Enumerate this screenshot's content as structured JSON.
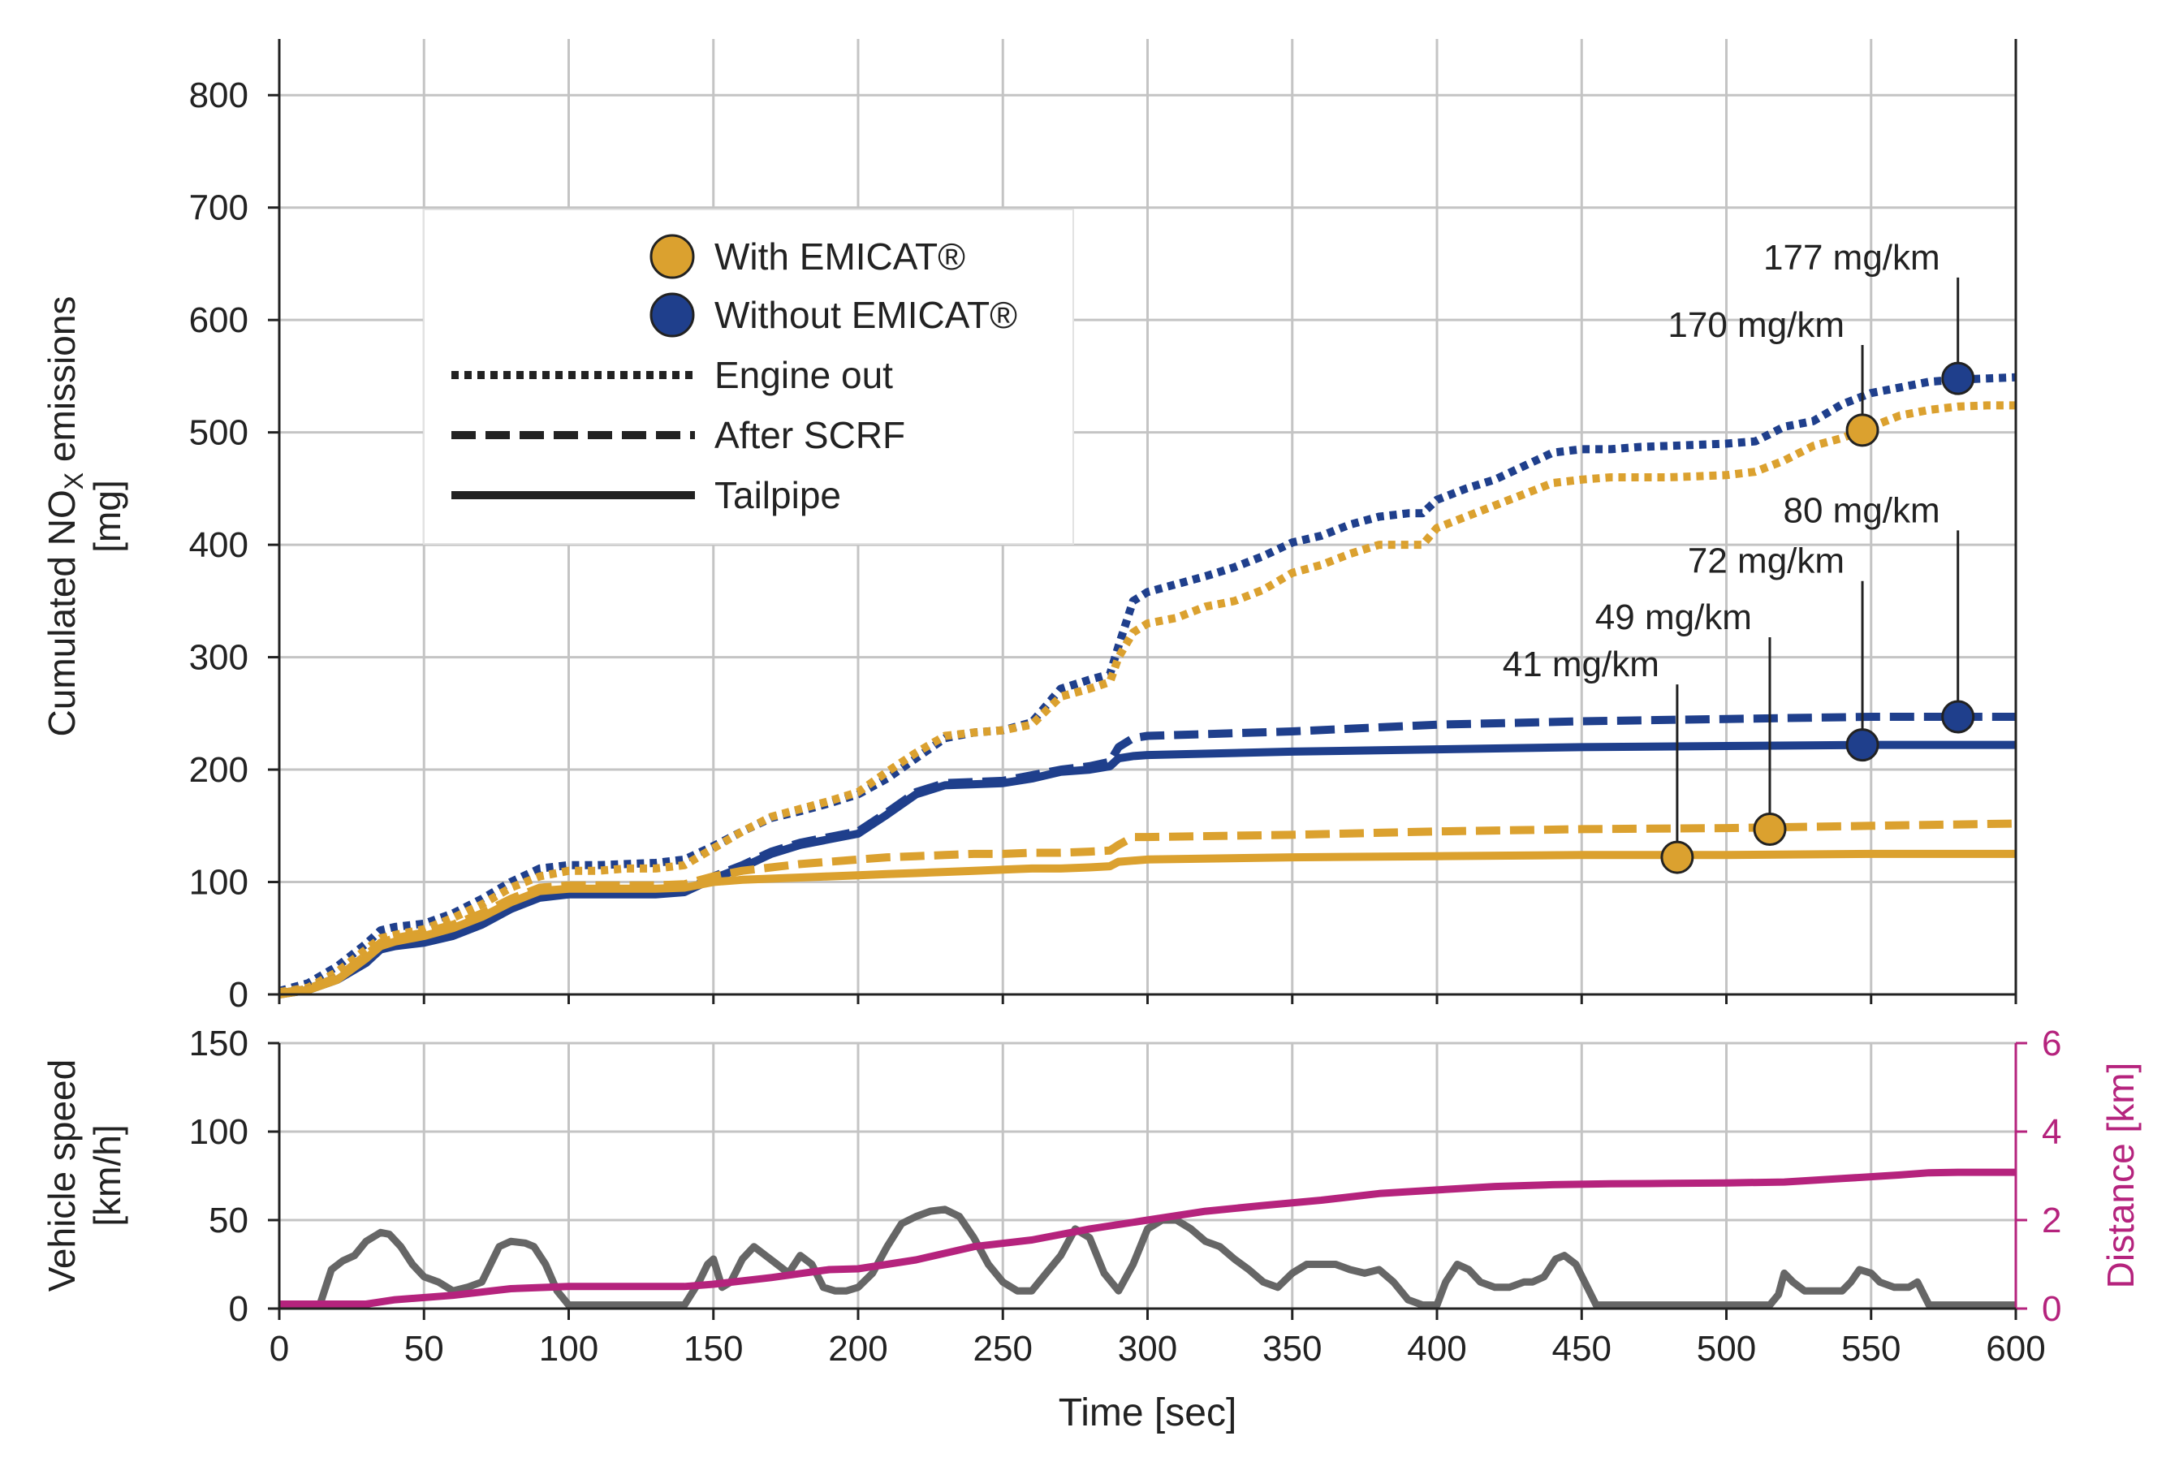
{
  "colors": {
    "with": "#DBA12F",
    "without": "#1F3F8C",
    "speed": "#666666",
    "distance": "#B5237D",
    "grid": "#c4c4c4",
    "text": "#222222"
  },
  "chart_data": [
    {
      "type": "line",
      "ylabel": "Cumulated NO",
      "ylabel_sub": "X",
      "ylabel_tail": " emissions",
      "ylabel_unit": "[mg]",
      "xlim": [
        0,
        600
      ],
      "ylim": [
        0,
        850
      ],
      "xticks": [
        0,
        50,
        100,
        150,
        200,
        250,
        300,
        350,
        400,
        450,
        500,
        550,
        600
      ],
      "yticks": [
        0,
        100,
        200,
        300,
        400,
        500,
        600,
        700,
        800
      ],
      "grid": true,
      "legend": {
        "placement": "upper-left",
        "entries": [
          {
            "label": "With EMICAT®",
            "marker": "circle",
            "color": "#DBA12F"
          },
          {
            "label": "Without EMICAT®",
            "marker": "circle",
            "color": "#1F3F8C"
          },
          {
            "label": "Engine out",
            "style": "dotted"
          },
          {
            "label": "After SCRF",
            "style": "dashed"
          },
          {
            "label": "Tailpipe",
            "style": "solid"
          }
        ]
      },
      "series": [
        {
          "variant": "without",
          "stage": "engine_out",
          "style": "dotted",
          "x": [
            0,
            10,
            20,
            30,
            35,
            40,
            50,
            60,
            70,
            80,
            90,
            100,
            110,
            120,
            130,
            140,
            150,
            160,
            170,
            180,
            190,
            200,
            210,
            220,
            230,
            240,
            250,
            260,
            270,
            280,
            287,
            290,
            295,
            300,
            310,
            320,
            330,
            340,
            350,
            360,
            370,
            380,
            390,
            395,
            400,
            410,
            420,
            430,
            440,
            450,
            460,
            470,
            480,
            490,
            500,
            510,
            520,
            530,
            540,
            550,
            560,
            570,
            580,
            590,
            600
          ],
          "y": [
            3,
            10,
            25,
            45,
            57,
            60,
            63,
            72,
            85,
            100,
            112,
            115,
            115,
            116,
            117,
            120,
            132,
            145,
            157,
            163,
            170,
            178,
            192,
            210,
            228,
            233,
            235,
            242,
            272,
            280,
            285,
            310,
            350,
            358,
            365,
            372,
            380,
            390,
            402,
            408,
            418,
            425,
            428,
            428,
            440,
            450,
            458,
            470,
            482,
            485,
            485,
            487,
            488,
            489,
            490,
            492,
            505,
            510,
            525,
            535,
            540,
            545,
            547,
            548,
            549
          ]
        },
        {
          "variant": "with",
          "stage": "engine_out",
          "style": "dotted",
          "x": [
            0,
            10,
            20,
            30,
            35,
            40,
            50,
            60,
            70,
            80,
            90,
            100,
            110,
            120,
            130,
            140,
            150,
            160,
            170,
            180,
            190,
            200,
            210,
            220,
            230,
            240,
            250,
            260,
            270,
            280,
            287,
            290,
            295,
            300,
            310,
            320,
            330,
            340,
            350,
            360,
            370,
            380,
            390,
            395,
            400,
            410,
            420,
            430,
            440,
            450,
            460,
            470,
            480,
            490,
            500,
            510,
            520,
            530,
            540,
            550,
            560,
            570,
            580,
            590,
            600
          ],
          "y": [
            2,
            6,
            20,
            40,
            50,
            53,
            58,
            68,
            80,
            95,
            105,
            110,
            110,
            112,
            112,
            115,
            130,
            145,
            158,
            165,
            172,
            180,
            198,
            215,
            230,
            233,
            235,
            240,
            265,
            272,
            278,
            300,
            322,
            330,
            335,
            345,
            350,
            360,
            375,
            382,
            392,
            400,
            400,
            400,
            415,
            425,
            435,
            445,
            455,
            458,
            460,
            460,
            460,
            461,
            462,
            465,
            475,
            488,
            495,
            505,
            515,
            520,
            523,
            524,
            524
          ]
        },
        {
          "variant": "without",
          "stage": "after_scrf",
          "style": "dashed",
          "x": [
            0,
            10,
            20,
            30,
            35,
            40,
            50,
            60,
            70,
            80,
            90,
            100,
            110,
            120,
            130,
            140,
            150,
            160,
            170,
            180,
            190,
            200,
            210,
            220,
            230,
            240,
            250,
            260,
            270,
            280,
            287,
            290,
            295,
            300,
            350,
            400,
            450,
            500,
            550,
            600
          ],
          "y": [
            1,
            5,
            15,
            30,
            42,
            45,
            47,
            53,
            63,
            78,
            88,
            90,
            90,
            90,
            90,
            92,
            105,
            115,
            127,
            135,
            140,
            145,
            162,
            180,
            188,
            189,
            190,
            195,
            200,
            203,
            207,
            220,
            228,
            230,
            234,
            240,
            243,
            245,
            247,
            247
          ]
        },
        {
          "variant": "without",
          "stage": "tailpipe",
          "style": "solid",
          "x": [
            0,
            10,
            20,
            30,
            35,
            40,
            50,
            60,
            70,
            80,
            90,
            100,
            110,
            120,
            130,
            140,
            150,
            160,
            170,
            180,
            190,
            200,
            210,
            220,
            230,
            240,
            250,
            260,
            270,
            280,
            287,
            290,
            295,
            300,
            350,
            400,
            450,
            500,
            550,
            600
          ],
          "y": [
            0,
            4,
            13,
            28,
            40,
            43,
            46,
            52,
            62,
            76,
            86,
            89,
            89,
            89,
            89,
            91,
            103,
            113,
            125,
            133,
            138,
            143,
            160,
            178,
            186,
            187,
            188,
            192,
            198,
            200,
            203,
            210,
            212,
            213,
            216,
            218,
            220,
            221,
            222,
            222
          ]
        },
        {
          "variant": "with",
          "stage": "after_scrf",
          "style": "dashed",
          "x": [
            0,
            10,
            20,
            30,
            35,
            40,
            50,
            60,
            70,
            80,
            90,
            100,
            110,
            120,
            130,
            140,
            150,
            160,
            170,
            180,
            190,
            200,
            210,
            220,
            230,
            240,
            250,
            260,
            270,
            280,
            287,
            290,
            295,
            300,
            350,
            400,
            450,
            500,
            550,
            600
          ],
          "y": [
            1,
            5,
            15,
            35,
            46,
            50,
            55,
            62,
            72,
            85,
            95,
            97,
            97,
            97,
            97,
            98,
            105,
            110,
            113,
            116,
            118,
            120,
            122,
            123,
            124,
            125,
            125,
            126,
            126,
            127,
            128,
            133,
            140,
            140,
            142,
            145,
            147,
            148,
            150,
            152
          ]
        },
        {
          "variant": "with",
          "stage": "tailpipe",
          "style": "solid",
          "x": [
            0,
            10,
            20,
            30,
            35,
            40,
            50,
            60,
            70,
            80,
            90,
            100,
            110,
            120,
            130,
            140,
            150,
            160,
            170,
            180,
            190,
            200,
            210,
            220,
            230,
            240,
            250,
            260,
            270,
            280,
            287,
            290,
            295,
            300,
            350,
            400,
            450,
            500,
            550,
            600
          ],
          "y": [
            0,
            4,
            13,
            32,
            43,
            47,
            52,
            59,
            69,
            82,
            92,
            94,
            94,
            94,
            94,
            95,
            100,
            102,
            103,
            104,
            105,
            106,
            107,
            108,
            109,
            110,
            111,
            112,
            112,
            113,
            114,
            118,
            119,
            120,
            122,
            123,
            124,
            124,
            125,
            125
          ]
        }
      ],
      "markers": [
        {
          "x": 547,
          "y": 502,
          "variant": "with",
          "label": "170 mg/km",
          "label_y": 585
        },
        {
          "x": 580,
          "y": 548,
          "variant": "without",
          "label": "177 mg/km",
          "label_y": 645
        },
        {
          "x": 483,
          "y": 122,
          "variant": "with",
          "label": "41 mg/km",
          "label_y": 283
        },
        {
          "x": 515,
          "y": 147,
          "variant": "with",
          "label": "49 mg/km",
          "label_y": 325
        },
        {
          "x": 547,
          "y": 222,
          "variant": "without",
          "label": "72 mg/km",
          "label_y": 375
        },
        {
          "x": 580,
          "y": 247,
          "variant": "without",
          "label": "80 mg/km",
          "label_y": 420
        }
      ]
    },
    {
      "type": "line",
      "xlabel": "Time [sec]",
      "ylabel": "Vehicle speed",
      "ylabel_unit": "[km/h]",
      "ylabel_right": "Distance [km]",
      "xlim": [
        0,
        600
      ],
      "ylim": [
        0,
        150
      ],
      "ylim_right": [
        0,
        6
      ],
      "xticks": [
        0,
        50,
        100,
        150,
        200,
        250,
        300,
        350,
        400,
        450,
        500,
        550,
        600
      ],
      "yticks": [
        0,
        50,
        100,
        150
      ],
      "yticks_right": [
        0,
        2,
        4,
        6
      ],
      "grid": true,
      "series": [
        {
          "name": "Vehicle speed",
          "axis": "left",
          "x": [
            0,
            14,
            18,
            22,
            26,
            30,
            35,
            38,
            42,
            46,
            50,
            55,
            60,
            65,
            70,
            73,
            76,
            80,
            85,
            88,
            92,
            96,
            100,
            140,
            145,
            148,
            150,
            153,
            156,
            160,
            164,
            168,
            172,
            176,
            180,
            184,
            188,
            192,
            196,
            200,
            205,
            210,
            215,
            220,
            225,
            230,
            235,
            240,
            245,
            250,
            255,
            260,
            265,
            270,
            275,
            280,
            285,
            290,
            295,
            300,
            305,
            310,
            315,
            320,
            325,
            330,
            335,
            340,
            345,
            350,
            355,
            360,
            365,
            370,
            375,
            380,
            385,
            390,
            395,
            400,
            403,
            407,
            411,
            415,
            420,
            425,
            430,
            433,
            437,
            441,
            444,
            448,
            455,
            470,
            480,
            500,
            510,
            515,
            518,
            520,
            523,
            527,
            530,
            540,
            543,
            546,
            550,
            553,
            558,
            563,
            566,
            570,
            575,
            580,
            590,
            600
          ],
          "y": [
            2,
            2,
            22,
            27,
            30,
            38,
            43,
            42,
            35,
            25,
            18,
            15,
            10,
            12,
            15,
            25,
            35,
            38,
            37,
            35,
            25,
            10,
            2,
            2,
            15,
            25,
            28,
            12,
            15,
            28,
            35,
            30,
            25,
            20,
            30,
            25,
            12,
            10,
            10,
            12,
            20,
            35,
            48,
            52,
            55,
            56,
            52,
            40,
            25,
            15,
            10,
            10,
            20,
            30,
            45,
            40,
            20,
            10,
            25,
            45,
            50,
            50,
            45,
            38,
            35,
            28,
            22,
            15,
            12,
            20,
            25,
            25,
            25,
            22,
            20,
            22,
            15,
            5,
            2,
            2,
            15,
            25,
            22,
            15,
            12,
            12,
            15,
            15,
            18,
            28,
            30,
            25,
            2,
            2,
            2,
            2,
            2,
            2,
            8,
            20,
            15,
            10,
            10,
            10,
            15,
            22,
            20,
            15,
            12,
            12,
            15,
            2,
            2,
            2,
            2,
            2
          ]
        },
        {
          "name": "Distance",
          "axis": "right",
          "x": [
            0,
            20,
            30,
            40,
            60,
            80,
            100,
            120,
            140,
            150,
            170,
            190,
            200,
            220,
            240,
            260,
            280,
            300,
            320,
            340,
            360,
            380,
            400,
            420,
            440,
            460,
            480,
            500,
            520,
            540,
            560,
            570,
            580,
            600
          ],
          "y": [
            0.1,
            0.1,
            0.1,
            0.2,
            0.3,
            0.45,
            0.5,
            0.5,
            0.5,
            0.55,
            0.7,
            0.88,
            0.9,
            1.1,
            1.4,
            1.55,
            1.8,
            2.0,
            2.2,
            2.33,
            2.45,
            2.6,
            2.68,
            2.76,
            2.8,
            2.82,
            2.83,
            2.84,
            2.86,
            2.94,
            3.02,
            3.07,
            3.08,
            3.08
          ]
        }
      ]
    }
  ]
}
